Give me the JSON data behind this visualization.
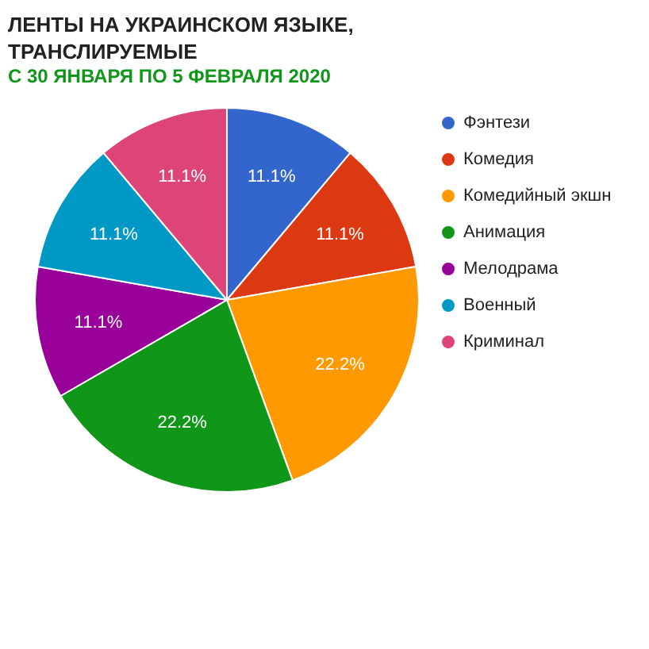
{
  "chart_data": {
    "type": "pie",
    "title": "ЛЕНТЫ НА УКРАИНСКОМ ЯЗЫКЕ, ТРАНСЛИРУЕМЫЕ",
    "subtitle": "С 30 ЯНВАРЯ ПО 5 ФЕВРАЛЯ 2020",
    "categories": [
      "Фэнтези",
      "Комедия",
      "Комедийный экшн",
      "Анимация",
      "Мелодрама",
      "Военный",
      "Криминал"
    ],
    "values": [
      11.1,
      11.1,
      22.2,
      22.2,
      11.1,
      11.1,
      11.1
    ],
    "value_labels": [
      "11.1%",
      "11.1%",
      "22.2%",
      "22.2%",
      "11.1%",
      "11.1%",
      "11.1%"
    ],
    "colors": [
      "#3366cc",
      "#dc3912",
      "#ff9900",
      "#109618",
      "#990099",
      "#0099c6",
      "#dd4477"
    ],
    "legend": "top right"
  }
}
